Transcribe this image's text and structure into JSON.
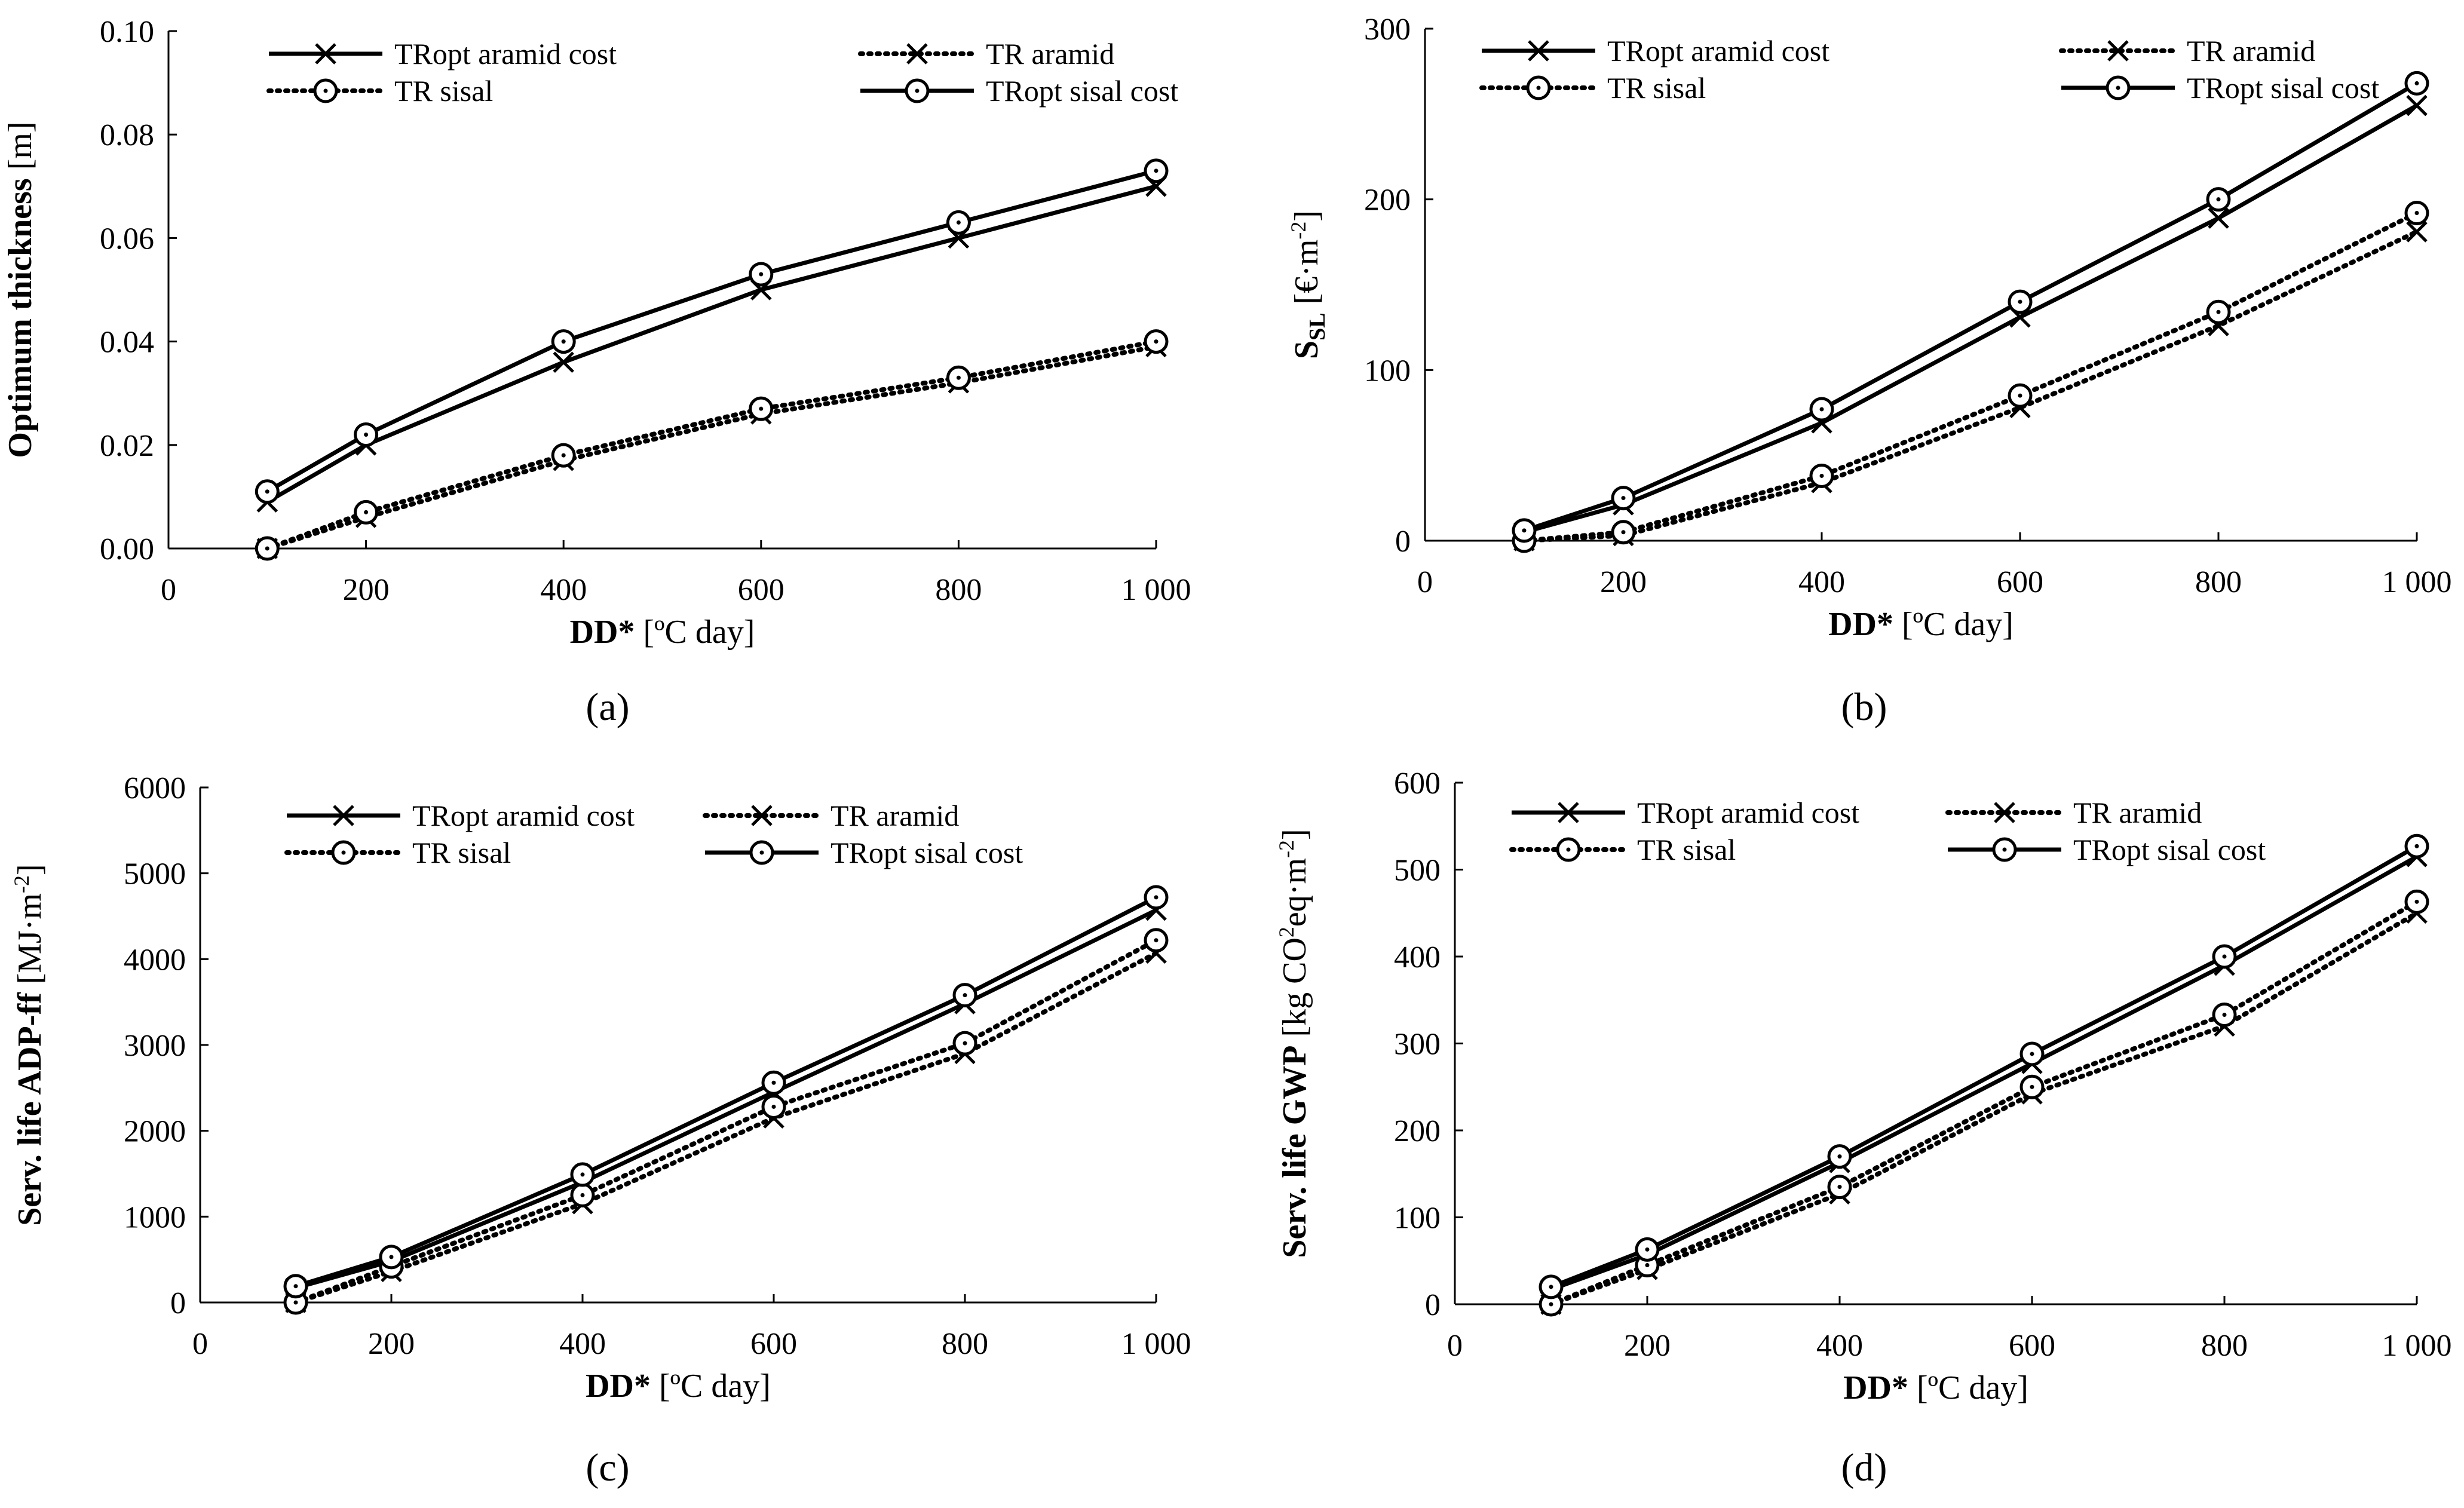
{
  "figure": {
    "panels": [
      {
        "id": "a",
        "label": "(a)"
      },
      {
        "id": "b",
        "label": "(b)"
      },
      {
        "id": "c",
        "label": "(c)"
      },
      {
        "id": "d",
        "label": "(d)"
      }
    ]
  },
  "chart_data": [
    {
      "id": "a",
      "type": "line",
      "panel_label": "(a)",
      "xlabel_bold": "DD*",
      "xlabel_rest": " [ºC day]",
      "ylabel_bold": "Optimum thickness",
      "ylabel_rest": " [m]",
      "xlim": [
        0,
        1000
      ],
      "ylim": [
        0,
        0.1
      ],
      "xticks": [
        0,
        200,
        400,
        600,
        800,
        1000
      ],
      "xtick_labels": [
        "0",
        "200",
        "400",
        "600",
        "800",
        "1 000"
      ],
      "yticks": [
        0,
        0.02,
        0.04,
        0.06,
        0.08,
        0.1
      ],
      "ytick_labels": [
        "0.00",
        "0.02",
        "0.04",
        "0.06",
        "0.08",
        "0.10"
      ],
      "x": [
        100,
        200,
        400,
        600,
        800,
        1000
      ],
      "series": [
        {
          "name": "TRopt aramid cost",
          "style": "solid",
          "marker": "x",
          "values": [
            0.009,
            0.02,
            0.036,
            0.05,
            0.06,
            0.07
          ]
        },
        {
          "name": "TR aramid",
          "style": "dotted",
          "marker": "x",
          "values": [
            0.0,
            0.006,
            0.017,
            0.026,
            0.032,
            0.039
          ]
        },
        {
          "name": "TR sisal",
          "style": "dotted",
          "marker": "o",
          "values": [
            0.0,
            0.007,
            0.018,
            0.027,
            0.033,
            0.04
          ]
        },
        {
          "name": "TRopt sisal cost",
          "style": "solid",
          "marker": "o",
          "values": [
            0.011,
            0.022,
            0.04,
            0.053,
            0.063,
            0.073
          ]
        }
      ]
    },
    {
      "id": "b",
      "type": "line",
      "panel_label": "(b)",
      "xlabel_bold": "DD*",
      "xlabel_rest": " [ºC day]",
      "ylabel_bold": "S",
      "ylabel_sub": "SL",
      "ylabel_rest": " [€·m",
      "ylabel_sup": "-2",
      "ylabel_end": "]",
      "xlim": [
        0,
        1000
      ],
      "ylim": [
        0,
        300
      ],
      "xticks": [
        0,
        200,
        400,
        600,
        800,
        1000
      ],
      "xtick_labels": [
        "0",
        "200",
        "400",
        "600",
        "800",
        "1 000"
      ],
      "yticks": [
        0,
        100,
        200,
        300
      ],
      "ytick_labels": [
        "0",
        "100",
        "200",
        "300"
      ],
      "x": [
        100,
        200,
        400,
        600,
        800,
        1000
      ],
      "series": [
        {
          "name": "TRopt aramid cost",
          "style": "solid",
          "marker": "x",
          "values": [
            5,
            21,
            69,
            131,
            189,
            255
          ]
        },
        {
          "name": "TR aramid",
          "style": "dotted",
          "marker": "x",
          "values": [
            0,
            3,
            34,
            78,
            126,
            181
          ]
        },
        {
          "name": "TR sisal",
          "style": "dotted",
          "marker": "o",
          "values": [
            0,
            5,
            38,
            85,
            134,
            192
          ]
        },
        {
          "name": "TRopt sisal cost",
          "style": "solid",
          "marker": "o",
          "values": [
            6,
            25,
            77,
            140,
            200,
            268
          ]
        }
      ]
    },
    {
      "id": "c",
      "type": "line",
      "panel_label": "(c)",
      "xlabel_bold": "DD*",
      "xlabel_rest": " [ºC day]",
      "ylabel_bold": "Serv. life ADP-ff",
      "ylabel_rest": " [MJ·m",
      "ylabel_sup": "-2",
      "ylabel_end": "]",
      "xlim": [
        0,
        1000
      ],
      "ylim": [
        0,
        6000
      ],
      "xticks": [
        0,
        200,
        400,
        600,
        800,
        1000
      ],
      "xtick_labels": [
        "0",
        "200",
        "400",
        "600",
        "800",
        "1 000"
      ],
      "yticks": [
        0,
        1000,
        2000,
        3000,
        4000,
        5000,
        6000
      ],
      "ytick_labels": [
        "0",
        "1000",
        "2000",
        "3000",
        "4000",
        "5000",
        "6000"
      ],
      "x": [
        100,
        200,
        400,
        600,
        800,
        1000
      ],
      "series": [
        {
          "name": "TRopt aramid cost",
          "style": "solid",
          "marker": "x",
          "values": [
            170,
            480,
            1400,
            2450,
            3480,
            4570
          ]
        },
        {
          "name": "TR aramid",
          "style": "dotted",
          "marker": "x",
          "values": [
            0,
            360,
            1150,
            2150,
            2900,
            4070
          ]
        },
        {
          "name": "TR sisal",
          "style": "dotted",
          "marker": "o",
          "values": [
            0,
            420,
            1250,
            2280,
            3020,
            4220
          ]
        },
        {
          "name": "TRopt sisal cost",
          "style": "solid",
          "marker": "o",
          "values": [
            190,
            530,
            1490,
            2560,
            3580,
            4720
          ]
        }
      ]
    },
    {
      "id": "d",
      "type": "line",
      "panel_label": "(d)",
      "xlabel_bold": "DD*",
      "xlabel_rest": " [ºC day]",
      "ylabel_bold": "Serv. life GWP",
      "ylabel_rest": " [kg CO",
      "ylabel_sup": "2",
      "ylabel_end": "eq·m",
      "ylabel_sup2": "-2",
      "ylabel_end2": "]",
      "xlim": [
        0,
        1000
      ],
      "ylim": [
        0,
        600
      ],
      "xticks": [
        0,
        200,
        400,
        600,
        800,
        1000
      ],
      "xtick_labels": [
        "0",
        "200",
        "400",
        "600",
        "800",
        "1 000"
      ],
      "yticks": [
        0,
        100,
        200,
        300,
        400,
        500,
        600
      ],
      "ytick_labels": [
        "0",
        "100",
        "200",
        "300",
        "400",
        "500",
        "600"
      ],
      "x": [
        100,
        200,
        400,
        600,
        800,
        1000
      ],
      "series": [
        {
          "name": "TRopt aramid cost",
          "style": "solid",
          "marker": "x",
          "values": [
            17,
            57,
            163,
            277,
            390,
            515
          ]
        },
        {
          "name": "TR aramid",
          "style": "dotted",
          "marker": "x",
          "values": [
            0,
            40,
            127,
            242,
            320,
            450
          ]
        },
        {
          "name": "TR sisal",
          "style": "dotted",
          "marker": "o",
          "values": [
            0,
            45,
            135,
            250,
            333,
            463
          ]
        },
        {
          "name": "TRopt sisal cost",
          "style": "solid",
          "marker": "o",
          "values": [
            20,
            63,
            170,
            288,
            400,
            527
          ]
        }
      ]
    }
  ]
}
